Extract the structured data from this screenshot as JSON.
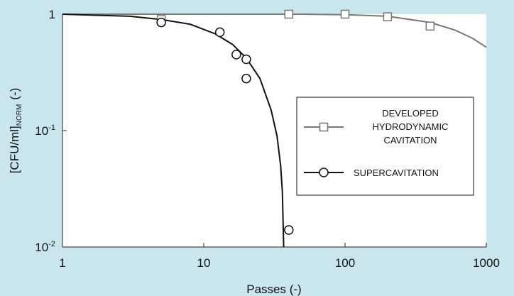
{
  "colors": {
    "background": "#c9e6ec",
    "plot_area": "#ffffff",
    "developed_series": "#777777",
    "supercavitation_series": "#111111"
  },
  "chart_data": {
    "type": "scatter",
    "title": "",
    "xlabel": "Passes (-)",
    "ylabel": "[CFU/ml]NORM (-)",
    "ylabel_parts": {
      "main": "[CFU/ml]",
      "subscript": "NORM",
      "suffix": "(-)"
    },
    "x_scale": "log",
    "y_scale": "log",
    "xlim": [
      1,
      1000
    ],
    "ylim": [
      0.01,
      1
    ],
    "x_ticks": [
      {
        "value": 1,
        "label": "1"
      },
      {
        "value": 10,
        "label": "10"
      },
      {
        "value": 100,
        "label": "100"
      },
      {
        "value": 1000,
        "label": "1000"
      }
    ],
    "y_ticks": [
      {
        "value": 1,
        "label": "1",
        "base": "1",
        "exp": ""
      },
      {
        "value": 0.1,
        "label": "10-1",
        "base": "10",
        "exp": "-1"
      },
      {
        "value": 0.01,
        "label": "10-2",
        "base": "10",
        "exp": "-2"
      }
    ],
    "grid": false,
    "legend_position": "right-middle",
    "series": [
      {
        "name": "DEVELOPED HYDRODYNAMIC CAVITATION",
        "legend_lines": [
          "DEVELOPED",
          "HYDRODYNAMIC",
          "CAVITATION"
        ],
        "marker": "square",
        "points": [
          {
            "x": 5,
            "y": 0.9
          },
          {
            "x": 40,
            "y": 1.0
          },
          {
            "x": 100,
            "y": 1.0
          },
          {
            "x": 200,
            "y": 0.95
          },
          {
            "x": 400,
            "y": 0.79
          }
        ],
        "fit_curve": [
          {
            "x": 1,
            "y": 1.0
          },
          {
            "x": 50,
            "y": 1.0
          },
          {
            "x": 100,
            "y": 0.99
          },
          {
            "x": 200,
            "y": 0.96
          },
          {
            "x": 400,
            "y": 0.85
          },
          {
            "x": 600,
            "y": 0.73
          },
          {
            "x": 800,
            "y": 0.62
          },
          {
            "x": 1000,
            "y": 0.52
          }
        ]
      },
      {
        "name": "SUPERCAVITATION",
        "legend_lines": [
          "SUPERCAVITATION"
        ],
        "marker": "circle",
        "points": [
          {
            "x": 5,
            "y": 0.85
          },
          {
            "x": 13,
            "y": 0.7
          },
          {
            "x": 17,
            "y": 0.45
          },
          {
            "x": 20,
            "y": 0.41
          },
          {
            "x": 20,
            "y": 0.28
          },
          {
            "x": 40,
            "y": 0.014
          }
        ],
        "fit_curve": [
          {
            "x": 1,
            "y": 1.0
          },
          {
            "x": 3,
            "y": 0.96
          },
          {
            "x": 5,
            "y": 0.9
          },
          {
            "x": 8,
            "y": 0.82
          },
          {
            "x": 12,
            "y": 0.68
          },
          {
            "x": 16,
            "y": 0.55
          },
          {
            "x": 20,
            "y": 0.42
          },
          {
            "x": 25,
            "y": 0.28
          },
          {
            "x": 30,
            "y": 0.15
          },
          {
            "x": 33,
            "y": 0.09
          },
          {
            "x": 35,
            "y": 0.05
          },
          {
            "x": 36,
            "y": 0.03
          },
          {
            "x": 36.8,
            "y": 0.01
          }
        ]
      }
    ]
  }
}
